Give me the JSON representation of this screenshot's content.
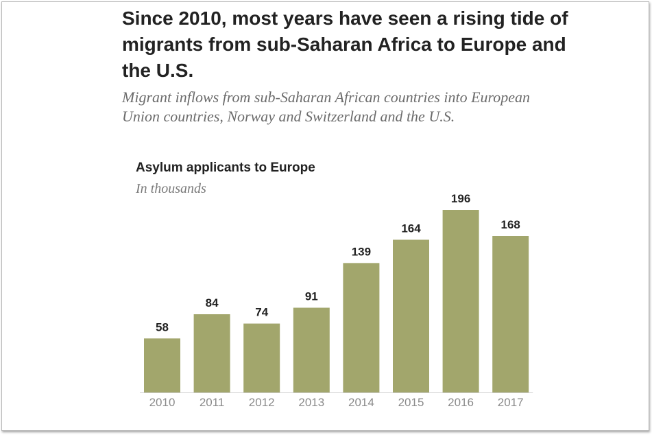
{
  "headline": "Since 2010, most years have seen a rising tide of migrants from sub-Saharan Africa to Europe and the U.S.",
  "subtitle": "Migrant inflows from sub-Saharan African countries into European Union countries, Norway and Switzerland and the U.S.",
  "chart_data": {
    "type": "bar",
    "title": "Asylum applicants to Europe",
    "subtitle": "In thousands",
    "categories": [
      "2010",
      "2011",
      "2012",
      "2013",
      "2014",
      "2015",
      "2016",
      "2017"
    ],
    "values": [
      58,
      84,
      74,
      91,
      139,
      164,
      196,
      168
    ],
    "value_labels": [
      "58",
      "84",
      "74",
      "91",
      "139",
      "164",
      "196",
      "168"
    ],
    "ylim": [
      0,
      196
    ],
    "grid": false,
    "legend": "none",
    "bar_color": "#a2a66c"
  }
}
